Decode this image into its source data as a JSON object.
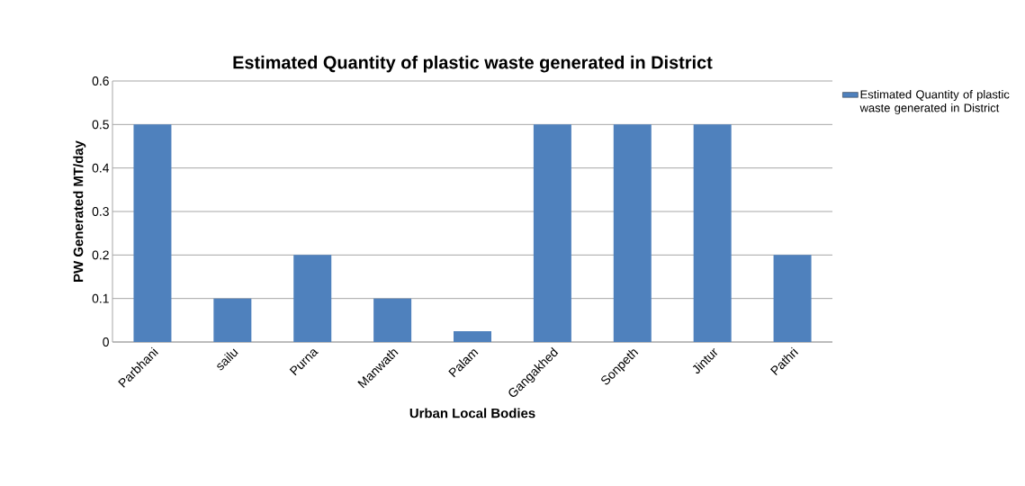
{
  "chart_data": {
    "type": "bar",
    "title": "Estimated Quantity of plastic waste generated in District",
    "xlabel": "Urban Local Bodies",
    "ylabel": "PW Generated  MT/day",
    "categories": [
      "Parbhani",
      "sailu",
      "Purna",
      "Manwath",
      "Palam",
      "Gangakhed",
      "Sonpeth",
      "Jintur",
      "Pathri"
    ],
    "series": [
      {
        "name": "Estimated Quantity of plastic waste generated in District",
        "color": "#4f81bd",
        "values": [
          0.5,
          0.1,
          0.2,
          0.1,
          0.025,
          0.5,
          0.5,
          0.5,
          0.2
        ]
      }
    ],
    "ylim": [
      0,
      0.6
    ],
    "yticks": [
      0,
      0.1,
      0.2,
      0.3,
      0.4,
      0.5,
      0.6
    ],
    "grid": "y",
    "legend": "right"
  }
}
